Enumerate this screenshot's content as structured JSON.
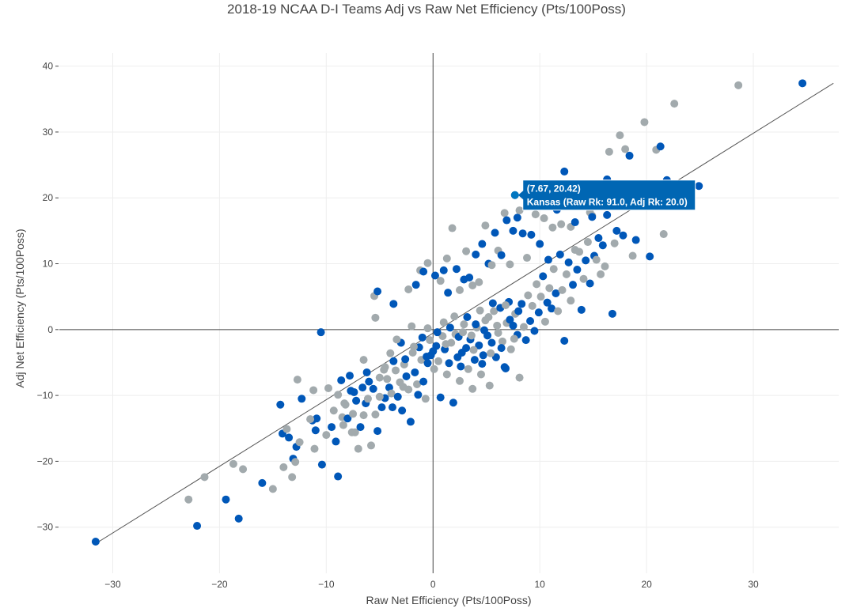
{
  "chart_data": {
    "type": "scatter",
    "title": "2018-19 NCAA D-I Teams Adj vs Raw Net Efficiency (Pts/100Poss)",
    "xlabel": "Raw Net Efficiency (Pts/100Poss)",
    "ylabel": "Adj Net Efficiency (Pts/100Poss)",
    "xlim": [
      -35,
      38
    ],
    "ylim": [
      -37,
      42
    ],
    "x_ticks": [
      -30,
      -20,
      -10,
      0,
      10,
      20,
      30
    ],
    "y_ticks": [
      -30,
      -20,
      -10,
      0,
      10,
      20,
      30,
      40
    ],
    "x_tick_labels": [
      "−30",
      "−20",
      "−10",
      "0",
      "10",
      "20",
      "30"
    ],
    "y_tick_labels": [
      "−30",
      "−20",
      "−10",
      "0",
      "10",
      "20",
      "30",
      "40"
    ],
    "grid": true,
    "legend": "none",
    "colors": [
      "#0c2340",
      "#c8102e",
      "#154734",
      "#0057b8",
      "#582c83",
      "#f1b82d",
      "#000000",
      "#7a1f3d",
      "#e35205",
      "#7bafd4",
      "#a2aaad",
      "#8d6e3f",
      "#00778b",
      "#5e2a1e"
    ],
    "trendline": {
      "x": [
        -31.6,
        37.5
      ],
      "y": [
        -32.5,
        37.4
      ]
    },
    "points": [
      [
        -31.6,
        -32.2
      ],
      [
        -22.9,
        -25.8
      ],
      [
        -22.1,
        -29.8
      ],
      [
        -21.4,
        -22.4
      ],
      [
        -19.4,
        -25.8
      ],
      [
        -18.7,
        -20.4
      ],
      [
        -18.2,
        -28.7
      ],
      [
        -17.8,
        -21.2
      ],
      [
        -16.0,
        -23.3
      ],
      [
        -15.0,
        -24.2
      ],
      [
        -14.3,
        -11.4
      ],
      [
        -14.0,
        -20.9
      ],
      [
        -14.1,
        -15.8
      ],
      [
        -13.7,
        -15.1
      ],
      [
        -13.5,
        -16.4
      ],
      [
        -13.2,
        -22.4
      ],
      [
        -13.1,
        -19.6
      ],
      [
        -12.9,
        -20.1
      ],
      [
        -12.8,
        -17.8
      ],
      [
        -12.7,
        -7.6
      ],
      [
        -12.3,
        -10.5
      ],
      [
        -12.5,
        -17.1
      ],
      [
        -11.3,
        -13.8
      ],
      [
        -11.2,
        -9.2
      ],
      [
        -11.0,
        -15.3
      ],
      [
        -11.1,
        -18.1
      ],
      [
        -10.4,
        -20.5
      ],
      [
        -10.0,
        -16.0
      ],
      [
        -10.5,
        -0.4
      ],
      [
        -9.3,
        -12.3
      ],
      [
        -9.1,
        -17.0
      ],
      [
        -8.9,
        -9.9
      ],
      [
        -8.6,
        -7.7
      ],
      [
        -8.5,
        -13.3
      ],
      [
        -8.9,
        -22.3
      ],
      [
        -8.4,
        -14.5
      ],
      [
        -8.0,
        -13.5
      ],
      [
        -8.3,
        -11.2
      ],
      [
        -7.7,
        -9.3
      ],
      [
        -7.5,
        -12.8
      ],
      [
        -7.4,
        -9.5
      ],
      [
        -7.3,
        -15.6
      ],
      [
        -7.2,
        -10.8
      ],
      [
        -7.0,
        -18.1
      ],
      [
        -6.8,
        -14.8
      ],
      [
        -6.5,
        -13.0
      ],
      [
        -6.3,
        -11.2
      ],
      [
        -6.1,
        -10.5
      ],
      [
        -6.0,
        -7.9
      ],
      [
        -5.8,
        -17.6
      ],
      [
        -5.6,
        -9.0
      ],
      [
        -5.4,
        -12.9
      ],
      [
        -5.2,
        -15.4
      ],
      [
        -5.0,
        -7.3
      ],
      [
        -4.8,
        -11.8
      ],
      [
        -4.6,
        -6.1
      ],
      [
        -4.5,
        -10.4
      ],
      [
        -4.3,
        -7.5
      ],
      [
        -4.1,
        -8.8
      ],
      [
        -3.9,
        -9.7
      ],
      [
        -3.7,
        -4.8
      ],
      [
        -3.5,
        -6.2
      ],
      [
        -3.3,
        -10.2
      ],
      [
        -3.1,
        -8.0
      ],
      [
        -2.9,
        -12.3
      ],
      [
        -2.7,
        -5.3
      ],
      [
        -2.5,
        -7.1
      ],
      [
        -2.3,
        -9.1
      ],
      [
        -2.1,
        -14.0
      ],
      [
        -1.9,
        -3.5
      ],
      [
        -1.7,
        -6.5
      ],
      [
        -1.5,
        -8.3
      ],
      [
        -1.3,
        -2.7
      ],
      [
        -1.1,
        -4.6
      ],
      [
        -0.9,
        -7.9
      ],
      [
        -0.7,
        -10.5
      ],
      [
        -0.5,
        -5.1
      ],
      [
        -0.3,
        -1.6
      ],
      [
        -0.2,
        -3.9
      ],
      [
        0.1,
        -6.0
      ],
      [
        0.3,
        -2.5
      ],
      [
        0.5,
        -4.8
      ],
      [
        0.7,
        -10.3
      ],
      [
        0.9,
        -1.0
      ],
      [
        1.1,
        -3.0
      ],
      [
        1.3,
        -6.8
      ],
      [
        1.5,
        -5.1
      ],
      [
        1.7,
        -2.0
      ],
      [
        1.9,
        -11.1
      ],
      [
        2.1,
        -0.7
      ],
      [
        2.3,
        -4.2
      ],
      [
        2.5,
        -7.8
      ],
      [
        2.7,
        -3.5
      ],
      [
        2.9,
        0.8
      ],
      [
        3.1,
        -2.8
      ],
      [
        3.3,
        -6.0
      ],
      [
        3.5,
        -1.5
      ],
      [
        3.7,
        -9.0
      ],
      [
        3.9,
        -4.6
      ],
      [
        4.1,
        0.3
      ],
      [
        4.3,
        -2.4
      ],
      [
        4.5,
        -6.8
      ],
      [
        4.7,
        -3.9
      ],
      [
        4.9,
        1.4
      ],
      [
        5.1,
        -0.9
      ],
      [
        5.3,
        -8.5
      ],
      [
        5.5,
        -2.0
      ],
      [
        5.7,
        2.8
      ],
      [
        5.9,
        -4.2
      ],
      [
        6.1,
        -0.5
      ],
      [
        6.3,
        3.3
      ],
      [
        6.5,
        -1.8
      ],
      [
        6.7,
        -5.7
      ],
      [
        6.9,
        1.0
      ],
      [
        7.1,
        4.2
      ],
      [
        7.3,
        -3.0
      ],
      [
        7.5,
        0.6
      ],
      [
        7.7,
        2.4
      ],
      [
        7.9,
        -0.8
      ],
      [
        8.1,
        -7.3
      ],
      [
        8.3,
        3.9
      ],
      [
        8.5,
        0.4
      ],
      [
        8.7,
        -1.6
      ],
      [
        8.9,
        5.2
      ],
      [
        9.1,
        1.3
      ],
      [
        9.3,
        3.6
      ],
      [
        9.5,
        -0.2
      ],
      [
        9.7,
        6.9
      ],
      [
        9.9,
        2.6
      ],
      [
        10.1,
        5.0
      ],
      [
        10.3,
        8.1
      ],
      [
        10.5,
        1.2
      ],
      [
        10.7,
        4.1
      ],
      [
        10.9,
        6.3
      ],
      [
        11.1,
        3.2
      ],
      [
        11.3,
        9.2
      ],
      [
        11.5,
        5.5
      ],
      [
        11.7,
        2.8
      ],
      [
        11.9,
        11.4
      ],
      [
        12.1,
        6.0
      ],
      [
        12.3,
        -1.7
      ],
      [
        12.5,
        8.4
      ],
      [
        12.7,
        10.2
      ],
      [
        12.9,
        4.4
      ],
      [
        13.1,
        6.8
      ],
      [
        13.3,
        12.1
      ],
      [
        13.5,
        9.1
      ],
      [
        13.7,
        11.8
      ],
      [
        13.9,
        3.0
      ],
      [
        14.1,
        7.7
      ],
      [
        14.3,
        10.5
      ],
      [
        14.5,
        13.3
      ],
      [
        14.7,
        7.0
      ],
      [
        14.9,
        17.3
      ],
      [
        15.1,
        11.2
      ],
      [
        15.3,
        10.6
      ],
      [
        15.5,
        13.9
      ],
      [
        15.7,
        8.4
      ],
      [
        15.9,
        12.8
      ],
      [
        16.1,
        9.6
      ],
      [
        16.3,
        22.8
      ],
      [
        16.5,
        27.0
      ],
      [
        16.8,
        2.4
      ],
      [
        17.0,
        13.1
      ],
      [
        17.2,
        15.0
      ],
      [
        17.5,
        29.5
      ],
      [
        17.8,
        14.3
      ],
      [
        18.0,
        27.4
      ],
      [
        18.4,
        26.4
      ],
      [
        18.7,
        11.2
      ],
      [
        19.0,
        13.6
      ],
      [
        19.8,
        31.5
      ],
      [
        20.3,
        11.1
      ],
      [
        20.9,
        27.3
      ],
      [
        21.3,
        27.8
      ],
      [
        21.6,
        14.5
      ],
      [
        21.9,
        22.7
      ],
      [
        22.6,
        34.3
      ],
      [
        24.9,
        21.8
      ],
      [
        28.6,
        37.1
      ],
      [
        34.6,
        37.4
      ],
      [
        -5.5,
        5.1
      ],
      [
        -5.2,
        5.8
      ],
      [
        -5.4,
        1.8
      ],
      [
        -3.7,
        3.9
      ],
      [
        -2.3,
        6.1
      ],
      [
        -1.6,
        6.8
      ],
      [
        -1.2,
        9.0
      ],
      [
        -0.9,
        8.8
      ],
      [
        -0.5,
        10.1
      ],
      [
        0.2,
        8.2
      ],
      [
        0.7,
        7.4
      ],
      [
        1.0,
        9.0
      ],
      [
        1.3,
        10.8
      ],
      [
        1.4,
        5.6
      ],
      [
        1.8,
        15.4
      ],
      [
        2.2,
        9.2
      ],
      [
        2.5,
        6.0
      ],
      [
        2.9,
        7.6
      ],
      [
        3.1,
        11.9
      ],
      [
        3.4,
        7.9
      ],
      [
        3.7,
        6.7
      ],
      [
        4.0,
        11.4
      ],
      [
        4.3,
        7.2
      ],
      [
        4.6,
        13.0
      ],
      [
        4.9,
        15.8
      ],
      [
        5.2,
        10.0
      ],
      [
        5.5,
        9.8
      ],
      [
        5.8,
        14.7
      ],
      [
        6.1,
        12.0
      ],
      [
        6.4,
        11.3
      ],
      [
        6.7,
        17.7
      ],
      [
        6.9,
        16.6
      ],
      [
        7.2,
        9.9
      ],
      [
        7.5,
        15.0
      ],
      [
        7.67,
        20.42
      ],
      [
        7.9,
        17.0
      ],
      [
        8.1,
        18.1
      ],
      [
        8.4,
        14.6
      ],
      [
        8.8,
        10.9
      ],
      [
        9.2,
        14.4
      ],
      [
        9.6,
        17.5
      ],
      [
        10.0,
        13.0
      ],
      [
        10.4,
        16.9
      ],
      [
        10.8,
        10.6
      ],
      [
        11.2,
        15.5
      ],
      [
        11.6,
        18.2
      ],
      [
        12.0,
        16.0
      ],
      [
        12.3,
        24.0
      ],
      [
        12.9,
        15.6
      ],
      [
        13.3,
        16.3
      ],
      [
        14.7,
        17.8
      ],
      [
        14.9,
        17.1
      ],
      [
        15.6,
        20.1
      ],
      [
        16.3,
        17.4
      ],
      [
        -2.0,
        0.5
      ],
      [
        -1.0,
        -1.2
      ],
      [
        -0.5,
        0.2
      ],
      [
        0.4,
        -0.4
      ],
      [
        1.0,
        1.1
      ],
      [
        1.6,
        0.3
      ],
      [
        2.0,
        2.0
      ],
      [
        2.4,
        -1.1
      ],
      [
        2.8,
        -0.4
      ],
      [
        3.2,
        1.9
      ],
      [
        3.6,
        -0.9
      ],
      [
        4.0,
        0.8
      ],
      [
        4.4,
        2.9
      ],
      [
        4.8,
        -0.1
      ],
      [
        5.2,
        1.9
      ],
      [
        5.6,
        4.0
      ],
      [
        6.0,
        0.6
      ],
      [
        6.4,
        -2.8
      ],
      [
        6.8,
        3.7
      ],
      [
        7.2,
        1.5
      ],
      [
        7.6,
        -1.4
      ],
      [
        8.0,
        2.8
      ],
      [
        -4.0,
        -3.6
      ],
      [
        -3.0,
        -2.0
      ],
      [
        -6.5,
        -4.6
      ],
      [
        -7.8,
        -7.0
      ],
      [
        -9.8,
        -8.9
      ],
      [
        -10.9,
        -13.5
      ],
      [
        -8.2,
        -11.4
      ],
      [
        -6.2,
        -6.5
      ],
      [
        -4.5,
        -5.7
      ],
      [
        -2.6,
        -4.5
      ],
      [
        -1.8,
        -2.6
      ],
      [
        0.0,
        -3.3
      ],
      [
        1.2,
        -2.2
      ],
      [
        2.6,
        -5.6
      ],
      [
        3.8,
        -3.1
      ],
      [
        4.6,
        -5.2
      ],
      [
        5.4,
        -3.6
      ],
      [
        6.8,
        -5.9
      ],
      [
        -11.5,
        -13.6
      ],
      [
        -9.5,
        -14.8
      ],
      [
        -7.6,
        -15.6
      ],
      [
        -6.6,
        -8.8
      ],
      [
        -5.0,
        -10.2
      ],
      [
        -3.8,
        -11.8
      ],
      [
        -2.8,
        -8.7
      ],
      [
        -1.4,
        -9.9
      ],
      [
        -3.4,
        -1.5
      ],
      [
        -0.6,
        -4.1
      ]
    ],
    "tooltip": {
      "coords": "(7.67, 20.42)",
      "label": "Kansas (Raw Rk: 91.0, Adj Rk: 20.0)",
      "x": 7.67,
      "y": 20.42
    }
  }
}
